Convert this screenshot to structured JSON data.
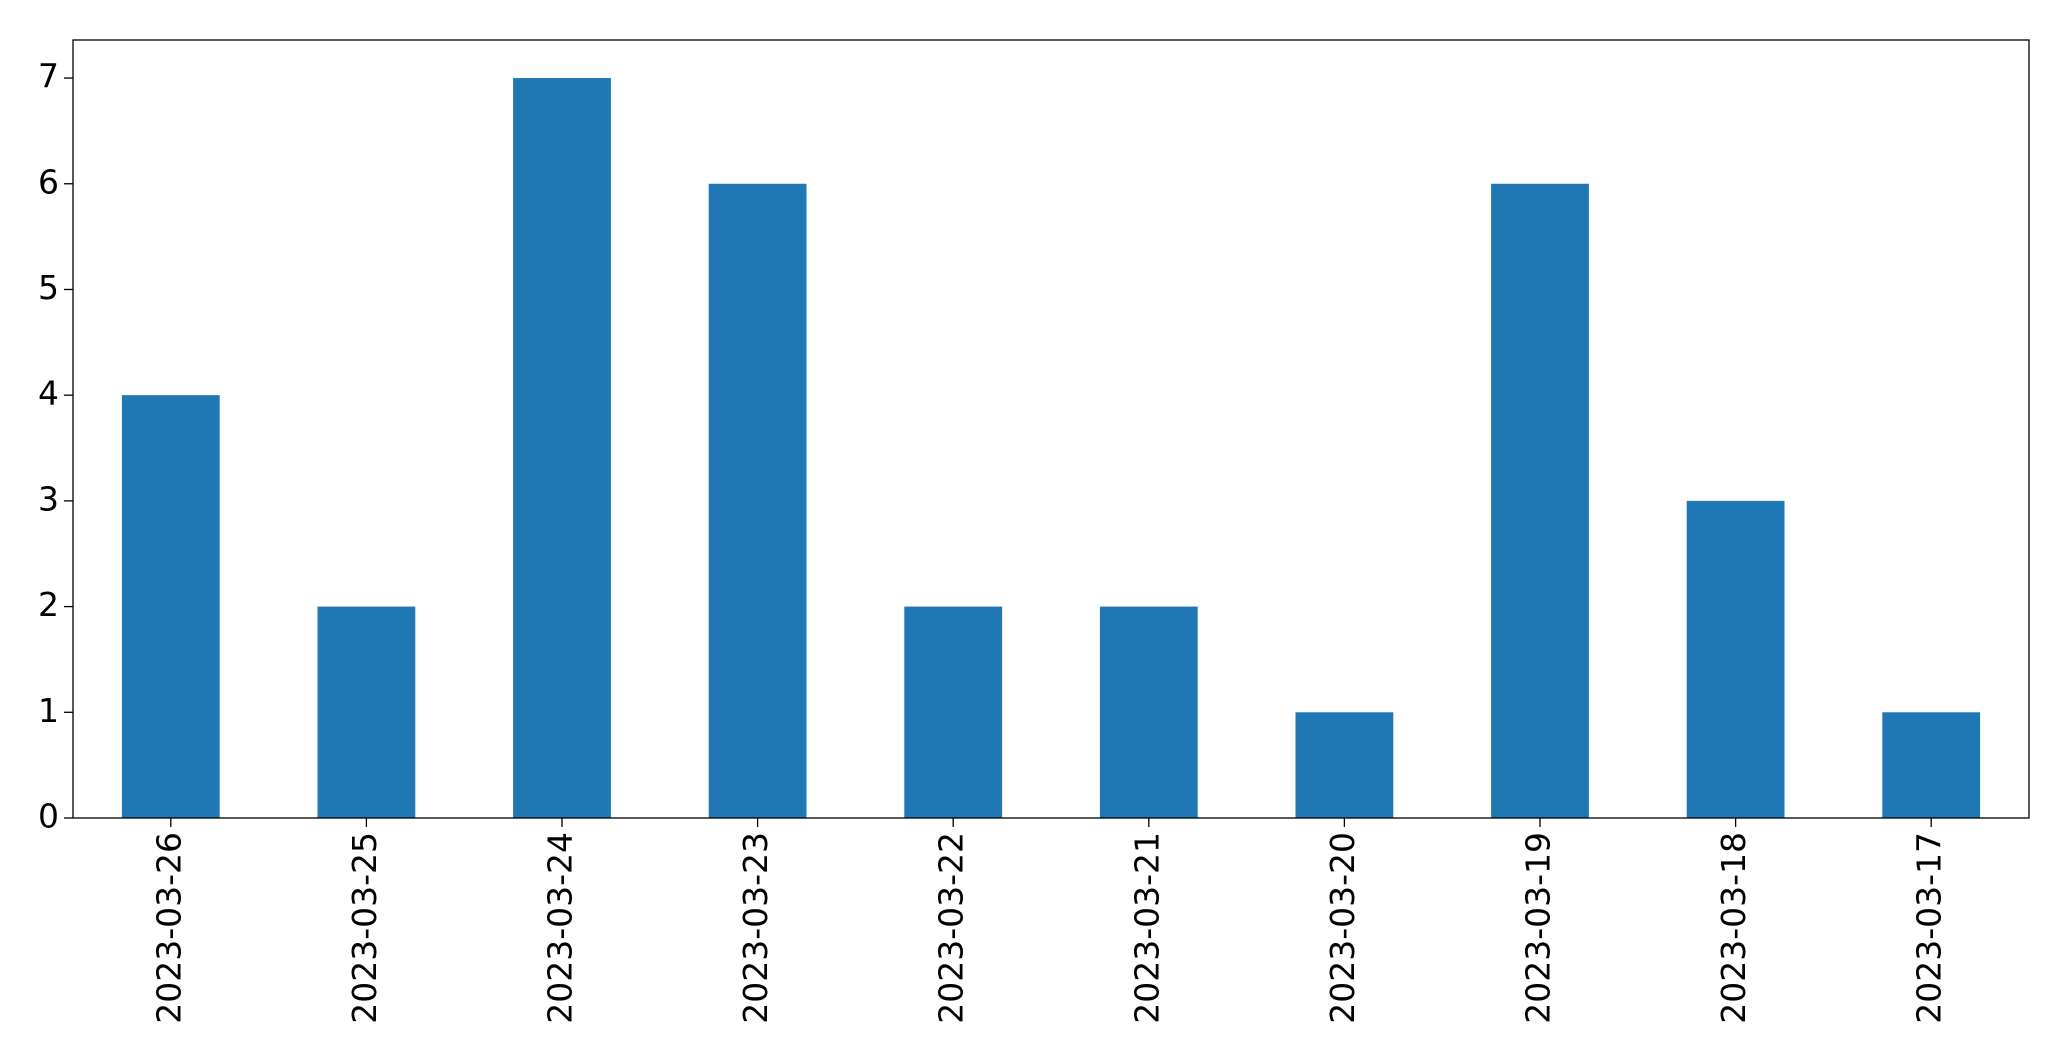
{
  "chart_data": {
    "type": "bar",
    "categories": [
      "2023-03-26",
      "2023-03-25",
      "2023-03-24",
      "2023-03-23",
      "2023-03-22",
      "2023-03-21",
      "2023-03-20",
      "2023-03-19",
      "2023-03-18",
      "2023-03-17"
    ],
    "values": [
      4,
      2,
      7,
      6,
      2,
      2,
      1,
      6,
      3,
      1
    ],
    "color": "#1f77b4",
    "ylim": [
      0,
      7.36
    ],
    "yticks": [
      0,
      1,
      2,
      3,
      4,
      5,
      6,
      7
    ],
    "grid": false
  }
}
